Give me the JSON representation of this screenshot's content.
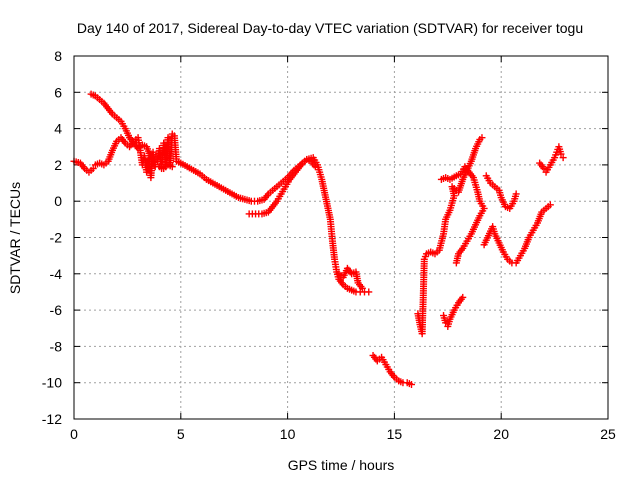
{
  "chart_data": {
    "type": "scatter",
    "title": "Day 140 of 2017, Sidereal Day-to-day VTEC variation (SDTVAR) for receiver togu",
    "xlabel": "GPS time / hours",
    "ylabel": "SDTVAR / TECUs",
    "xlim": [
      0,
      25
    ],
    "ylim": [
      -12,
      8
    ],
    "xticks": [
      0,
      5,
      10,
      15,
      20,
      25
    ],
    "yticks": [
      -12,
      -10,
      -8,
      -6,
      -4,
      -2,
      0,
      2,
      4,
      6,
      8
    ],
    "xtick_labels": [
      "0",
      "5",
      "10",
      "15",
      "20",
      "25"
    ],
    "ytick_labels": [
      "-12",
      "-10",
      "-8",
      "-6",
      "-4",
      "-2",
      "0",
      "2",
      "4",
      "6",
      "8"
    ],
    "grid": true,
    "marker": "+",
    "color": "#ff0000",
    "series": [
      {
        "points": [
          [
            0.0,
            2.2
          ],
          [
            0.3,
            2.1
          ],
          [
            0.5,
            1.8
          ],
          [
            0.7,
            1.6
          ],
          [
            0.9,
            1.8
          ],
          [
            1.0,
            2.0
          ],
          [
            1.2,
            2.1
          ],
          [
            1.4,
            2.0
          ],
          [
            1.6,
            2.2
          ],
          [
            1.8,
            2.8
          ],
          [
            2.0,
            3.3
          ],
          [
            2.2,
            3.5
          ],
          [
            2.4,
            3.2
          ],
          [
            2.6,
            3.0
          ],
          [
            2.8,
            3.3
          ],
          [
            3.0,
            3.5
          ],
          [
            3.1,
            2.8
          ],
          [
            3.2,
            2.0
          ],
          [
            3.3,
            2.5
          ],
          [
            3.4,
            1.6
          ],
          [
            3.5,
            2.3
          ],
          [
            3.6,
            1.3
          ],
          [
            3.7,
            2.7
          ],
          [
            3.8,
            2.0
          ],
          [
            3.9,
            2.2
          ],
          [
            4.0,
            2.9
          ],
          [
            4.1,
            1.8
          ],
          [
            4.2,
            3.2
          ],
          [
            4.3,
            1.9
          ],
          [
            4.4,
            3.5
          ],
          [
            4.5,
            2.0
          ],
          [
            4.6,
            3.7
          ],
          [
            4.7,
            3.6
          ],
          [
            4.8,
            2.2
          ],
          [
            5.0,
            2.1
          ],
          [
            5.3,
            1.9
          ],
          [
            5.6,
            1.7
          ],
          [
            5.9,
            1.5
          ],
          [
            6.2,
            1.2
          ],
          [
            6.5,
            1.0
          ],
          [
            6.8,
            0.8
          ],
          [
            7.1,
            0.6
          ],
          [
            7.4,
            0.4
          ],
          [
            7.7,
            0.2
          ],
          [
            8.0,
            0.1
          ],
          [
            8.3,
            0.0
          ],
          [
            8.6,
            0.0
          ],
          [
            8.9,
            0.1
          ],
          [
            9.1,
            0.4
          ],
          [
            9.4,
            0.7
          ],
          [
            9.7,
            1.0
          ],
          [
            10.0,
            1.3
          ],
          [
            10.3,
            1.7
          ],
          [
            10.6,
            2.0
          ],
          [
            10.9,
            2.3
          ],
          [
            11.2,
            2.4
          ],
          [
            11.4,
            2.0
          ],
          [
            11.6,
            1.2
          ],
          [
            11.8,
            0.1
          ],
          [
            12.0,
            -1.0
          ],
          [
            12.1,
            -2.2
          ],
          [
            12.2,
            -3.2
          ],
          [
            12.3,
            -3.9
          ],
          [
            12.4,
            -4.3
          ],
          [
            12.6,
            -4.6
          ],
          [
            12.8,
            -4.8
          ],
          [
            13.0,
            -4.9
          ],
          [
            13.2,
            -5.0
          ],
          [
            13.4,
            -5.0
          ],
          [
            13.6,
            -5.0
          ],
          [
            13.8,
            -5.0
          ]
        ]
      },
      {
        "points": [
          [
            0.8,
            5.9
          ],
          [
            1.0,
            5.8
          ],
          [
            1.2,
            5.6
          ],
          [
            1.4,
            5.4
          ],
          [
            1.6,
            5.1
          ],
          [
            1.8,
            4.8
          ],
          [
            2.0,
            4.6
          ],
          [
            2.2,
            4.4
          ],
          [
            2.4,
            4.0
          ],
          [
            2.6,
            3.5
          ],
          [
            2.8,
            3.2
          ],
          [
            3.0,
            2.9
          ],
          [
            3.2,
            3.1
          ],
          [
            3.4,
            3.0
          ],
          [
            3.6,
            2.4
          ],
          [
            3.8,
            1.9
          ],
          [
            4.0,
            1.9
          ],
          [
            4.2,
            1.8
          ],
          [
            4.4,
            2.0
          ],
          [
            4.6,
            1.9
          ]
        ]
      },
      {
        "points": [
          [
            8.2,
            -0.7
          ],
          [
            8.5,
            -0.7
          ],
          [
            8.8,
            -0.7
          ],
          [
            9.1,
            -0.6
          ],
          [
            9.3,
            -0.3
          ],
          [
            9.5,
            0.0
          ],
          [
            9.7,
            0.4
          ],
          [
            9.9,
            0.8
          ],
          [
            10.1,
            1.2
          ],
          [
            10.3,
            1.5
          ],
          [
            10.5,
            1.8
          ],
          [
            10.7,
            2.1
          ],
          [
            10.9,
            2.3
          ],
          [
            11.1,
            2.2
          ],
          [
            11.3,
            1.9
          ]
        ]
      },
      {
        "points": [
          [
            12.4,
            -4.0
          ],
          [
            12.6,
            -4.2
          ],
          [
            12.8,
            -3.7
          ],
          [
            13.0,
            -4.0
          ],
          [
            13.2,
            -3.9
          ],
          [
            13.3,
            -4.5
          ],
          [
            13.5,
            -4.8
          ]
        ]
      },
      {
        "points": [
          [
            14.0,
            -8.5
          ],
          [
            14.2,
            -8.8
          ],
          [
            14.4,
            -8.6
          ],
          [
            14.6,
            -9.0
          ],
          [
            14.8,
            -9.4
          ],
          [
            15.0,
            -9.7
          ],
          [
            15.2,
            -9.9
          ],
          [
            15.4,
            -10.0
          ],
          [
            15.6,
            -10.0
          ],
          [
            15.8,
            -10.1
          ]
        ]
      },
      {
        "points": [
          [
            16.1,
            -6.2
          ],
          [
            16.2,
            -6.8
          ],
          [
            16.3,
            -7.3
          ],
          [
            16.4,
            -3.2
          ],
          [
            16.5,
            -2.9
          ],
          [
            16.7,
            -2.8
          ],
          [
            16.9,
            -2.9
          ],
          [
            17.1,
            -2.7
          ],
          [
            17.3,
            -1.8
          ],
          [
            17.4,
            -1.0
          ],
          [
            17.6,
            -0.5
          ],
          [
            17.8,
            0.3
          ],
          [
            17.7,
            0.8
          ],
          [
            18.0,
            0.5
          ],
          [
            18.2,
            1.2
          ],
          [
            18.4,
            1.7
          ],
          [
            18.6,
            2.2
          ],
          [
            18.8,
            2.9
          ],
          [
            19.0,
            3.4
          ],
          [
            19.1,
            3.5
          ]
        ]
      },
      {
        "points": [
          [
            17.3,
            -6.3
          ],
          [
            17.4,
            -6.7
          ],
          [
            17.5,
            -6.9
          ],
          [
            17.6,
            -6.5
          ],
          [
            17.8,
            -6.0
          ],
          [
            18.0,
            -5.6
          ],
          [
            18.2,
            -5.3
          ]
        ]
      },
      {
        "points": [
          [
            17.2,
            1.2
          ],
          [
            17.4,
            1.3
          ],
          [
            17.6,
            1.2
          ],
          [
            17.9,
            1.4
          ],
          [
            18.1,
            1.5
          ],
          [
            18.3,
            1.9
          ],
          [
            18.5,
            1.6
          ],
          [
            18.7,
            1.3
          ],
          [
            18.9,
            0.5
          ],
          [
            19.0,
            0.0
          ],
          [
            19.2,
            -0.4
          ],
          [
            19.0,
            -0.8
          ],
          [
            18.8,
            -1.3
          ],
          [
            18.6,
            -1.8
          ],
          [
            18.4,
            -2.2
          ],
          [
            18.2,
            -2.6
          ],
          [
            18.0,
            -2.9
          ],
          [
            17.9,
            -3.4
          ]
        ]
      },
      {
        "points": [
          [
            19.3,
            1.4
          ],
          [
            19.5,
            1.0
          ],
          [
            19.7,
            0.8
          ],
          [
            19.9,
            0.6
          ],
          [
            20.0,
            0.2
          ],
          [
            20.2,
            -0.3
          ],
          [
            20.4,
            -0.4
          ],
          [
            20.6,
            0.0
          ],
          [
            20.7,
            0.4
          ]
        ]
      },
      {
        "points": [
          [
            19.2,
            -2.4
          ],
          [
            19.4,
            -1.9
          ],
          [
            19.6,
            -1.4
          ],
          [
            19.7,
            -1.8
          ],
          [
            19.9,
            -2.3
          ],
          [
            20.1,
            -2.8
          ],
          [
            20.3,
            -3.2
          ],
          [
            20.5,
            -3.4
          ],
          [
            20.7,
            -3.4
          ],
          [
            20.9,
            -3.0
          ],
          [
            21.1,
            -2.6
          ],
          [
            21.3,
            -2.0
          ],
          [
            21.5,
            -1.6
          ],
          [
            21.7,
            -1.2
          ],
          [
            21.9,
            -0.6
          ],
          [
            22.1,
            -0.4
          ],
          [
            22.3,
            -0.2
          ]
        ]
      },
      {
        "points": [
          [
            21.8,
            2.1
          ],
          [
            22.0,
            1.8
          ],
          [
            22.1,
            1.6
          ],
          [
            22.3,
            2.0
          ],
          [
            22.5,
            2.4
          ],
          [
            22.6,
            2.7
          ],
          [
            22.7,
            3.0
          ],
          [
            22.8,
            2.6
          ],
          [
            22.9,
            2.4
          ]
        ]
      }
    ]
  }
}
